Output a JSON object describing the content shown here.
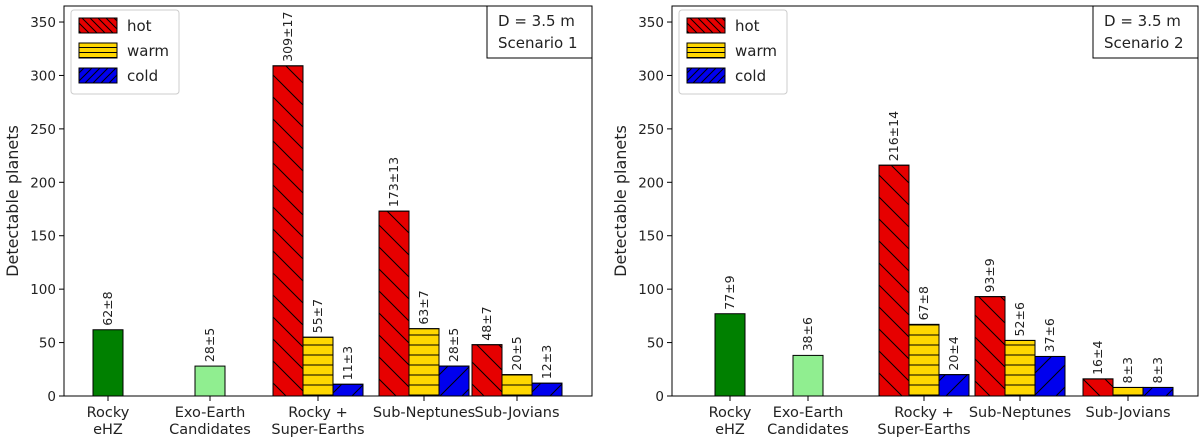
{
  "chart_data": [
    {
      "type": "bar",
      "panel": "left",
      "ylabel": "Detectable planets",
      "ylim": [
        0,
        365
      ],
      "yticks": [
        0,
        50,
        100,
        150,
        200,
        250,
        300,
        350
      ],
      "annotation": [
        "D = 3.5 m",
        "Scenario 1"
      ],
      "legend": {
        "placement": "top-left",
        "entries": [
          {
            "name": "hot",
            "color": "#e60000",
            "hatch": "backslash"
          },
          {
            "name": "warm",
            "color": "#ffd700",
            "hatch": "horizontal"
          },
          {
            "name": "cold",
            "color": "#0000ee",
            "hatch": "slash"
          }
        ]
      },
      "categories": [
        {
          "label": [
            "Rocky",
            "eHZ"
          ],
          "bars": [
            {
              "series": "Rocky eHZ",
              "color": "#008000",
              "hatch": "none",
              "value": 62,
              "label": "62±8"
            }
          ]
        },
        {
          "label": [
            "Exo-Earth",
            "Candidates"
          ],
          "bars": [
            {
              "series": "Exo-Earth Candidates",
              "color": "#90ee90",
              "hatch": "none",
              "value": 28,
              "label": "28±5"
            }
          ]
        },
        {
          "label": [
            "Rocky +",
            "Super-Earths"
          ],
          "bars": [
            {
              "series": "hot",
              "color": "#e60000",
              "hatch": "backslash",
              "value": 309,
              "label": "309±17"
            },
            {
              "series": "warm",
              "color": "#ffd700",
              "hatch": "horizontal",
              "value": 55,
              "label": "55±7"
            },
            {
              "series": "cold",
              "color": "#0000ee",
              "hatch": "slash",
              "value": 11,
              "label": "11±3"
            }
          ]
        },
        {
          "label": [
            "Sub-Neptunes"
          ],
          "bars": [
            {
              "series": "hot",
              "color": "#e60000",
              "hatch": "backslash",
              "value": 173,
              "label": "173±13"
            },
            {
              "series": "warm",
              "color": "#ffd700",
              "hatch": "horizontal",
              "value": 63,
              "label": "63±7"
            },
            {
              "series": "cold",
              "color": "#0000ee",
              "hatch": "slash",
              "value": 28,
              "label": "28±5"
            }
          ]
        },
        {
          "label": [
            "Sub-Jovians"
          ],
          "bars": [
            {
              "series": "hot",
              "color": "#e60000",
              "hatch": "backslash",
              "value": 48,
              "label": "48±7"
            },
            {
              "series": "warm",
              "color": "#ffd700",
              "hatch": "horizontal",
              "value": 20,
              "label": "20±5"
            },
            {
              "series": "cold",
              "color": "#0000ee",
              "hatch": "slash",
              "value": 12,
              "label": "12±3"
            }
          ]
        }
      ]
    },
    {
      "type": "bar",
      "panel": "right",
      "ylabel": "Detectable planets",
      "ylim": [
        0,
        365
      ],
      "yticks": [
        0,
        50,
        100,
        150,
        200,
        250,
        300,
        350
      ],
      "annotation": [
        "D = 3.5 m",
        "Scenario 2"
      ],
      "legend": {
        "placement": "top-left",
        "entries": [
          {
            "name": "hot",
            "color": "#e60000",
            "hatch": "backslash"
          },
          {
            "name": "warm",
            "color": "#ffd700",
            "hatch": "horizontal"
          },
          {
            "name": "cold",
            "color": "#0000ee",
            "hatch": "slash"
          }
        ]
      },
      "categories": [
        {
          "label": [
            "Rocky",
            "eHZ"
          ],
          "bars": [
            {
              "series": "Rocky eHZ",
              "color": "#008000",
              "hatch": "none",
              "value": 77,
              "label": "77±9"
            }
          ]
        },
        {
          "label": [
            "Exo-Earth",
            "Candidates"
          ],
          "bars": [
            {
              "series": "Exo-Earth Candidates",
              "color": "#90ee90",
              "hatch": "none",
              "value": 38,
              "label": "38±6"
            }
          ]
        },
        {
          "label": [
            "Rocky +",
            "Super-Earths"
          ],
          "bars": [
            {
              "series": "hot",
              "color": "#e60000",
              "hatch": "backslash",
              "value": 216,
              "label": "216±14"
            },
            {
              "series": "warm",
              "color": "#ffd700",
              "hatch": "horizontal",
              "value": 67,
              "label": "67±8"
            },
            {
              "series": "cold",
              "color": "#0000ee",
              "hatch": "slash",
              "value": 20,
              "label": "20±4"
            }
          ]
        },
        {
          "label": [
            "Sub-Neptunes"
          ],
          "bars": [
            {
              "series": "hot",
              "color": "#e60000",
              "hatch": "backslash",
              "value": 93,
              "label": "93±9"
            },
            {
              "series": "warm",
              "color": "#ffd700",
              "hatch": "horizontal",
              "value": 52,
              "label": "52±6"
            },
            {
              "series": "cold",
              "color": "#0000ee",
              "hatch": "slash",
              "value": 37,
              "label": "37±6"
            }
          ]
        },
        {
          "label": [
            "Sub-Jovians"
          ],
          "bars": [
            {
              "series": "hot",
              "color": "#e60000",
              "hatch": "backslash",
              "value": 16,
              "label": "16±4"
            },
            {
              "series": "warm",
              "color": "#ffd700",
              "hatch": "horizontal",
              "value": 8,
              "label": "8±3"
            },
            {
              "series": "cold",
              "color": "#0000ee",
              "hatch": "slash",
              "value": 8,
              "label": "8±3"
            }
          ]
        }
      ]
    }
  ]
}
